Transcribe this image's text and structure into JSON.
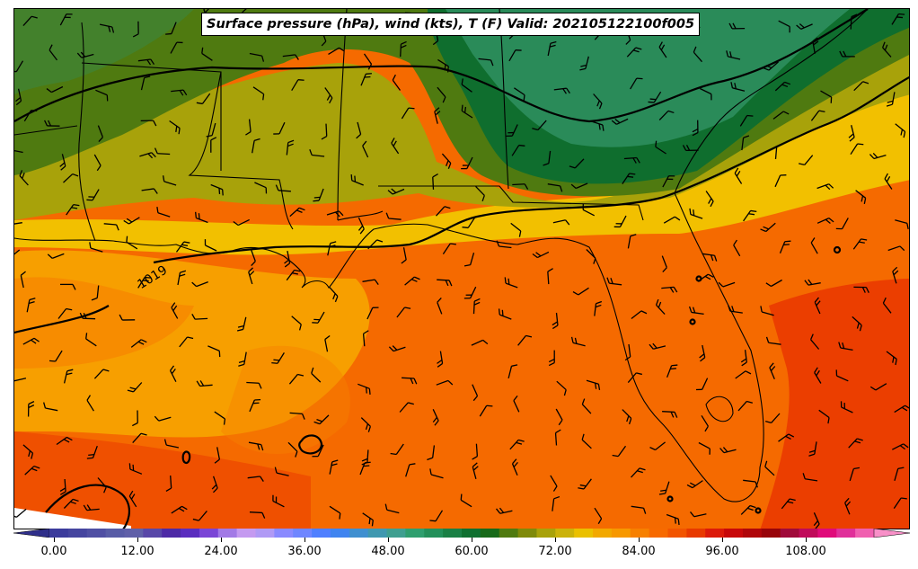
{
  "title": "Surface pressure (hPa), wind (kts), T (F) Valid: 202105122100f005",
  "isobar_label": "1019",
  "colorbar": {
    "tick_labels": [
      "0.00",
      "12.00",
      "24.00",
      "36.00",
      "48.00",
      "60.00",
      "72.00",
      "84.00",
      "96.00",
      "108.00"
    ],
    "min": -6,
    "max": 120,
    "step": 3,
    "colors": [
      "#2f2f8a",
      "#3c3c9c",
      "#45459f",
      "#4f4fa3",
      "#585ca6",
      "#6060a8",
      "#5847a8",
      "#4d2aa6",
      "#5a2dbf",
      "#7a45d6",
      "#a27ae6",
      "#c49af0",
      "#b09af5",
      "#8a8aff",
      "#6f86ff",
      "#4f7fff",
      "#3f84f0",
      "#3f8fd0",
      "#3f98b0",
      "#3f9f90",
      "#2f9f6f",
      "#23905a",
      "#1a8045",
      "#0f7030",
      "#176a1a",
      "#4f7a10",
      "#7f8a0a",
      "#a8a20a",
      "#cbb20a",
      "#eac000",
      "#f2a800",
      "#f79800",
      "#f78000",
      "#f76a00",
      "#f25500",
      "#e83a00",
      "#dc1a0a",
      "#c8080a",
      "#b0060a",
      "#98040a",
      "#a00a3a",
      "#c00a5a",
      "#e00a7a",
      "#e0309a",
      "#f060b0",
      "#f890c8"
    ]
  },
  "legend_colors": {
    "gulf_warm": "#f56a00",
    "deep_orange": "#ea3a00",
    "orange": "#f7a800",
    "yellow": "#f2c000",
    "olive": "#a8a20a",
    "green": "#4f7a10",
    "dark_green": "#0f6e2e",
    "sea_green": "#2f9060"
  }
}
